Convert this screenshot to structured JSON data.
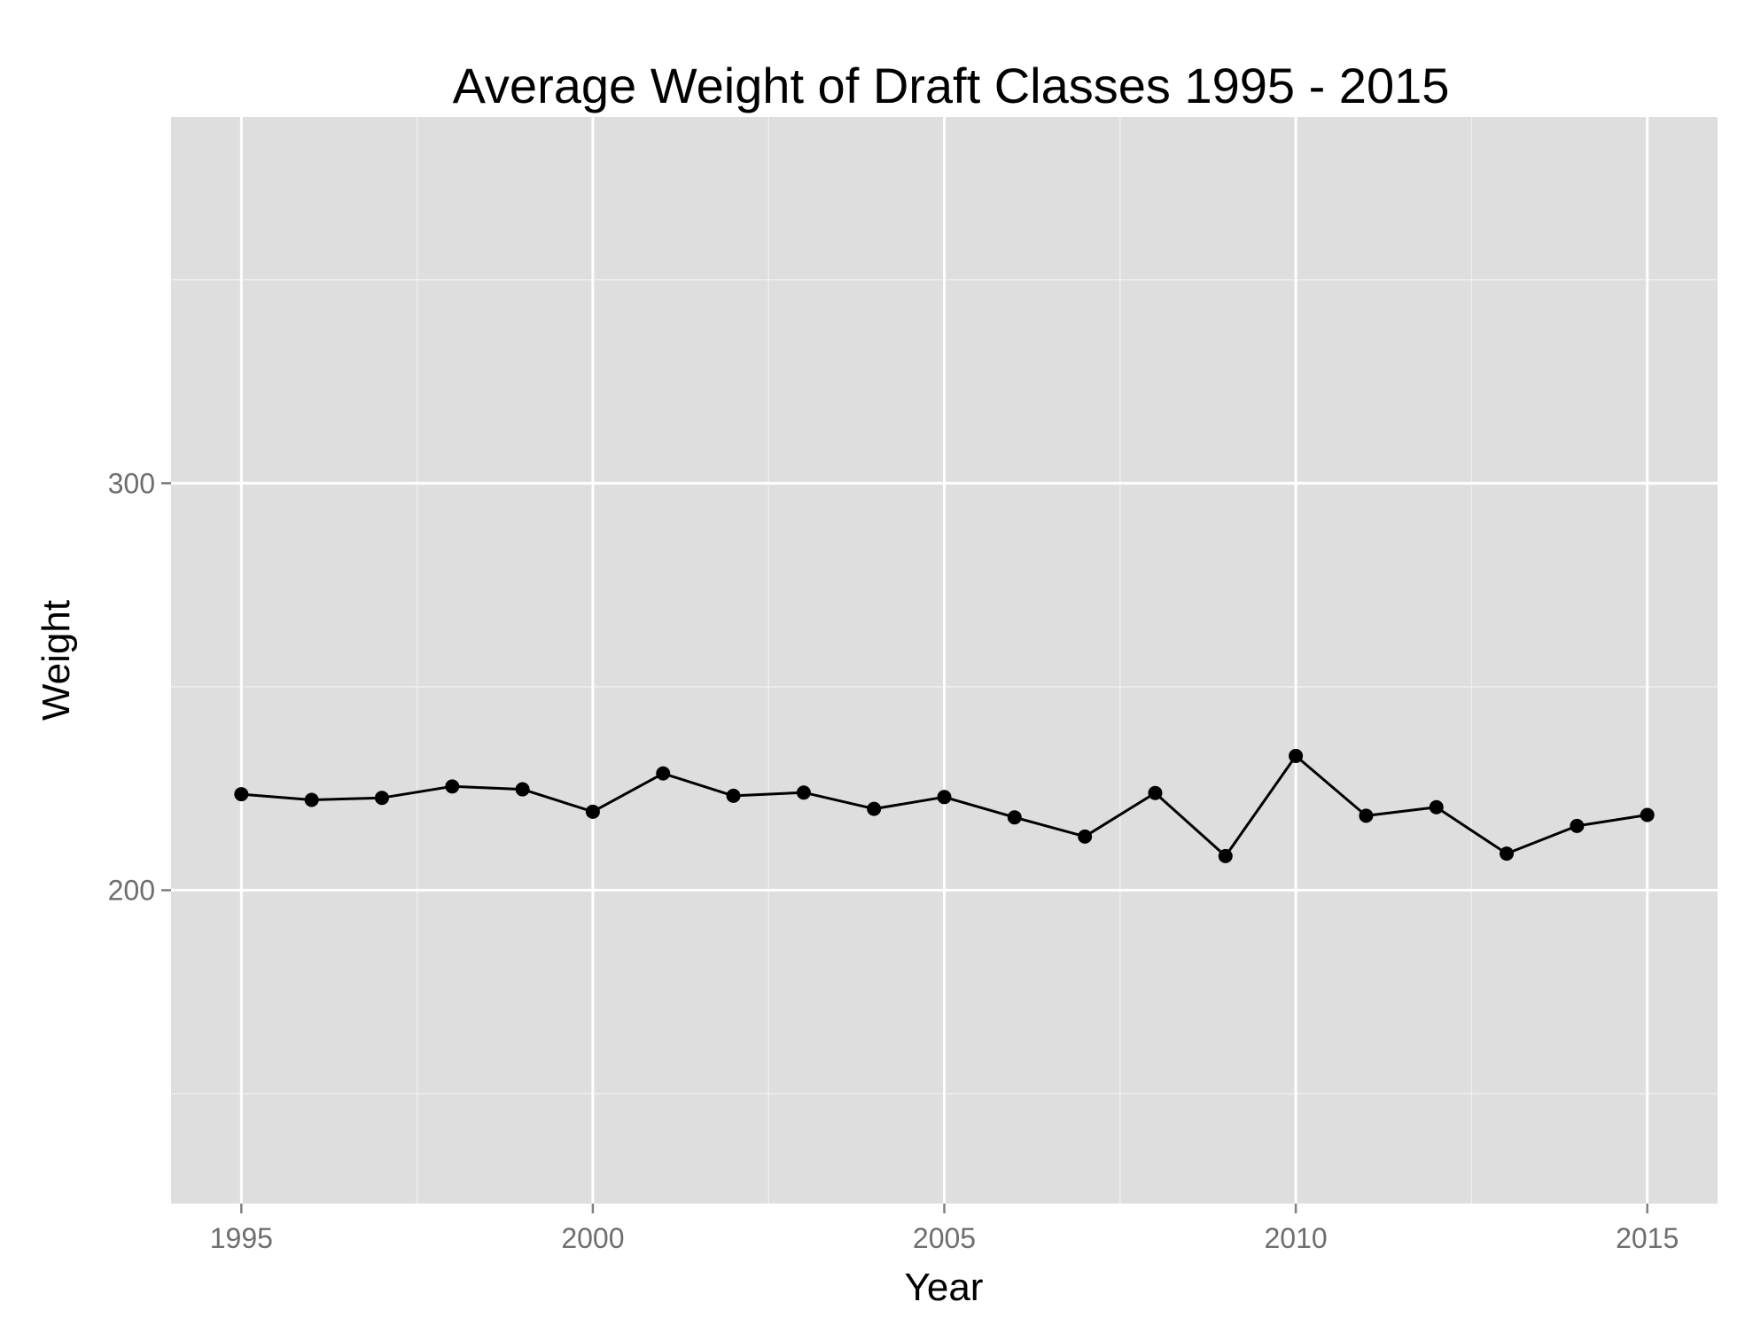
{
  "chart_data": {
    "type": "line",
    "title": "Average Weight of Draft Classes 1995 - 2015",
    "xlabel": "Year",
    "ylabel": "Weight",
    "xlim": [
      1994,
      2016
    ],
    "ylim": [
      123,
      390
    ],
    "x_ticks": [
      1995,
      2000,
      2005,
      2010,
      2015
    ],
    "x_tick_labels": [
      "1995",
      "2000",
      "2005",
      "2010",
      "2015"
    ],
    "x_minor_ticks": [
      1997.5,
      2002.5,
      2007.5,
      2012.5
    ],
    "y_ticks": [
      200,
      300
    ],
    "y_tick_labels": [
      "200",
      "300"
    ],
    "y_minor_ticks": [
      150,
      250,
      350
    ],
    "grid": true,
    "legend": "none",
    "colors": {
      "panel": "#dedede",
      "grid": "#ffffff",
      "line": "#000000"
    },
    "series": [
      {
        "x": [
          1995,
          1996,
          1997,
          1998,
          1999,
          2000,
          2001,
          2002,
          2003,
          2004,
          2005,
          2006,
          2007,
          2008,
          2009,
          2010,
          2011,
          2012,
          2013,
          2014,
          2015
        ],
        "values": [
          223.6,
          222.2,
          222.7,
          225.5,
          224.8,
          219.3,
          228.7,
          223.2,
          224.0,
          220.0,
          222.9,
          217.9,
          213.2,
          223.9,
          208.4,
          233.0,
          218.3,
          220.4,
          209.0,
          215.8,
          218.5
        ]
      }
    ]
  }
}
